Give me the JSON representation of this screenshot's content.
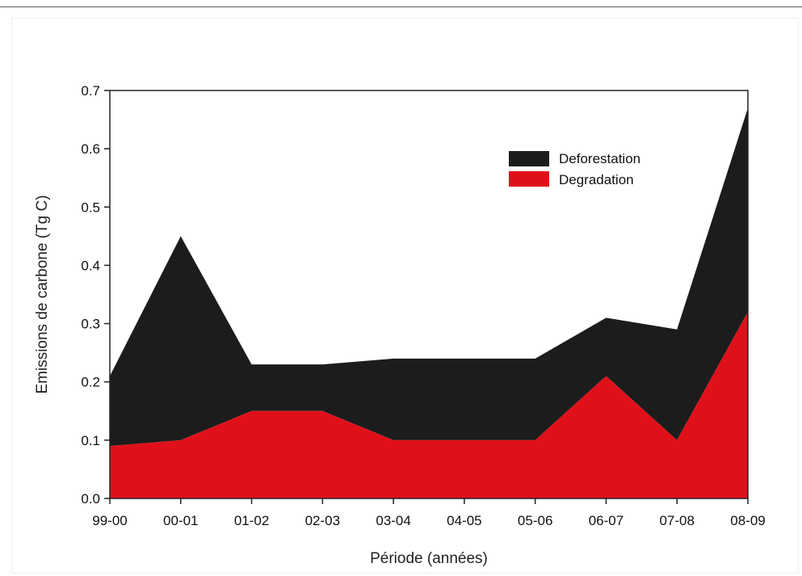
{
  "chart_data": {
    "type": "area",
    "stacked": true,
    "categories": [
      "99-00",
      "00-01",
      "01-02",
      "02-03",
      "03-04",
      "04-05",
      "05-06",
      "06-07",
      "07-08",
      "08-09"
    ],
    "series": [
      {
        "name": "Degradation",
        "color": "#e0101a",
        "values": [
          0.09,
          0.1,
          0.15,
          0.15,
          0.1,
          0.1,
          0.1,
          0.21,
          0.1,
          0.32
        ]
      },
      {
        "name": "Deforestation",
        "color": "#1c1c1c",
        "values": [
          0.12,
          0.35,
          0.08,
          0.08,
          0.14,
          0.14,
          0.14,
          0.1,
          0.19,
          0.35
        ]
      }
    ],
    "totals": [
      0.21,
      0.45,
      0.23,
      0.23,
      0.24,
      0.24,
      0.24,
      0.31,
      0.29,
      0.67
    ],
    "ylim": [
      0.0,
      0.7
    ],
    "yticks": [
      "0.0",
      "0.1",
      "0.2",
      "0.3",
      "0.4",
      "0.5",
      "0.6",
      "0.7"
    ],
    "xlabel": "Période (années)",
    "ylabel": "Emissions de carbone (Tg C)",
    "legend": {
      "placement": "top-right",
      "entries": [
        {
          "label": "Deforestation",
          "color": "#1c1c1c"
        },
        {
          "label": "Degradation",
          "color": "#e0101a"
        }
      ]
    },
    "grid": false
  }
}
